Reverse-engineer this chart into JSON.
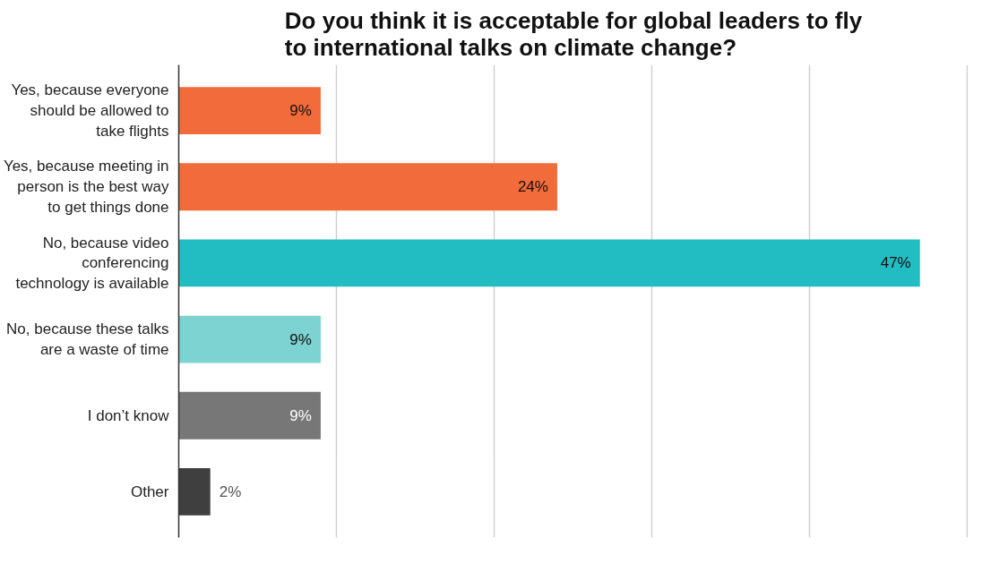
{
  "chart_data": {
    "type": "bar",
    "orientation": "horizontal",
    "title": "Do you think it is acceptable for global leaders to fly\nto international talks on climate change?",
    "categories": [
      "Yes, because everyone\nshould be allowed to\ntake flights",
      "Yes, because meeting in\nperson is the best way\nto get things done",
      "No, because video\nconferencing\ntechnology is available",
      "No, because these talks\nare a waste of time",
      "I don’t know",
      "Other"
    ],
    "values": [
      9,
      24,
      47,
      9,
      9,
      2
    ],
    "value_labels": [
      "9%",
      "24%",
      "47%",
      "9%",
      "9%",
      "2%"
    ],
    "colors": [
      "#f26b3a",
      "#f26b3a",
      "#22bcc3",
      "#7dd3d2",
      "#777777",
      "#3f3f3f"
    ],
    "tick_labels": "y",
    "grid": "x"
  }
}
